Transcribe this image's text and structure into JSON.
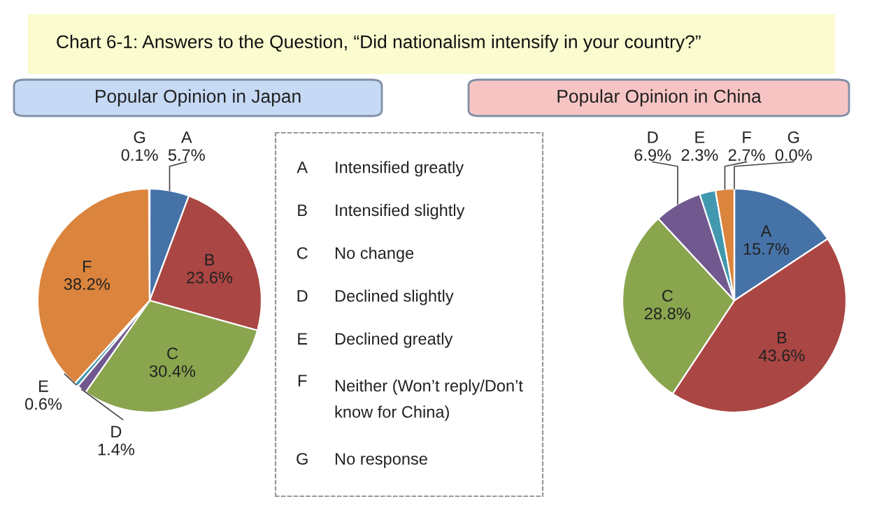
{
  "chart_data": [
    {
      "type": "pie",
      "title": "Popular Opinion in Japan",
      "categories": [
        "A",
        "B",
        "C",
        "D",
        "E",
        "F",
        "G"
      ],
      "values": [
        5.7,
        23.6,
        30.4,
        1.4,
        0.6,
        38.2,
        0.1
      ],
      "value_labels": [
        "5.7%",
        "23.6%",
        "30.4%",
        "1.4%",
        "0.6%",
        "38.2%",
        "0.1%"
      ],
      "colors": [
        "#4572a7",
        "#aa4643",
        "#89a54e",
        "#71588f",
        "#4198af",
        "#db843d",
        "#93a9cf"
      ]
    },
    {
      "type": "other",
      "title": "Chart 6-1: Answers to the Question, “Did nationalism intensify in your country?”",
      "annotations": [
        "A",
        "Intensified greatly",
        "B",
        "Intensified slightly",
        "C",
        "No change",
        "D",
        "Declined slightly",
        "E",
        "Declined greatly",
        "F",
        "Neither (Won’t reply/Don’t\nknow for China)",
        "G",
        "No response"
      ]
    },
    {
      "type": "pie",
      "title": "Popular Opinion in China",
      "categories": [
        "A",
        "B",
        "C",
        "D",
        "E",
        "F",
        "G"
      ],
      "values": [
        15.7,
        43.6,
        28.8,
        6.9,
        2.3,
        2.7,
        0.0
      ],
      "value_labels": [
        "15.7%",
        "43.6%",
        "28.8%",
        "6.9%",
        "2.3%",
        "2.7%",
        "0.0%"
      ],
      "colors": [
        "#4572a7",
        "#aa4643",
        "#89a54e",
        "#71588f",
        "#4198af",
        "#db843d",
        "#93a9cf"
      ]
    }
  ]
}
